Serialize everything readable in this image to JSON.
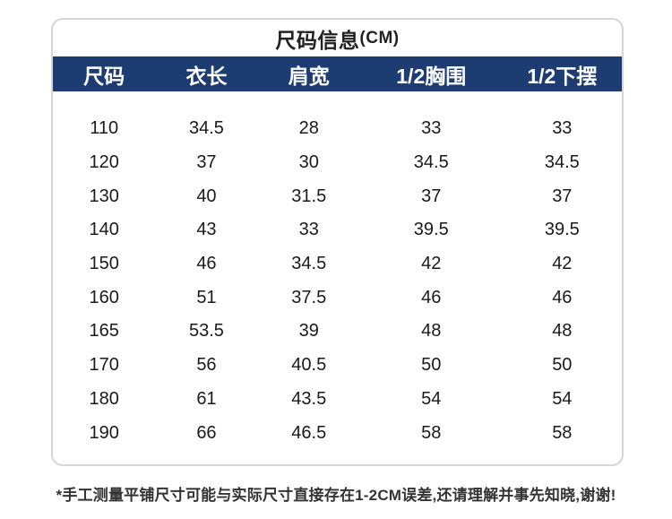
{
  "header": {
    "title": "尺码信息",
    "unit": "(CM)"
  },
  "chart_data": {
    "type": "table",
    "title": "尺码信息(CM)",
    "columns": [
      "尺码",
      "衣长",
      "肩宽",
      "1/2胸围",
      "1/2下摆"
    ],
    "rows": [
      [
        "110",
        "34.5",
        "28",
        "33",
        "33"
      ],
      [
        "120",
        "37",
        "30",
        "34.5",
        "34.5"
      ],
      [
        "130",
        "40",
        "31.5",
        "37",
        "37"
      ],
      [
        "140",
        "43",
        "33",
        "39.5",
        "39.5"
      ],
      [
        "150",
        "46",
        "34.5",
        "42",
        "42"
      ],
      [
        "160",
        "51",
        "37.5",
        "46",
        "46"
      ],
      [
        "165",
        "53.5",
        "39",
        "48",
        "48"
      ],
      [
        "170",
        "56",
        "40.5",
        "50",
        "50"
      ],
      [
        "180",
        "61",
        "43.5",
        "54",
        "54"
      ],
      [
        "190",
        "66",
        "46.5",
        "58",
        "58"
      ]
    ],
    "note": "*手工测量平铺尺寸可能与实际尺寸直接存在1-2CM误差,还请理解并事先知晓,谢谢!",
    "legend_position": "none",
    "grid": false
  },
  "footer": {
    "note": "*手工测量平铺尺寸可能与实际尺寸直接存在1-2CM误差,还请理解并事先知晓,谢谢!"
  },
  "colors": {
    "header_bg": "#1d3c72",
    "header_text": "#ffffff",
    "title_text": "#222222",
    "body_text": "#1a1a1a",
    "card_border": "#d6d6d6",
    "note_text": "#333333",
    "page_bg": "#ffffff"
  }
}
